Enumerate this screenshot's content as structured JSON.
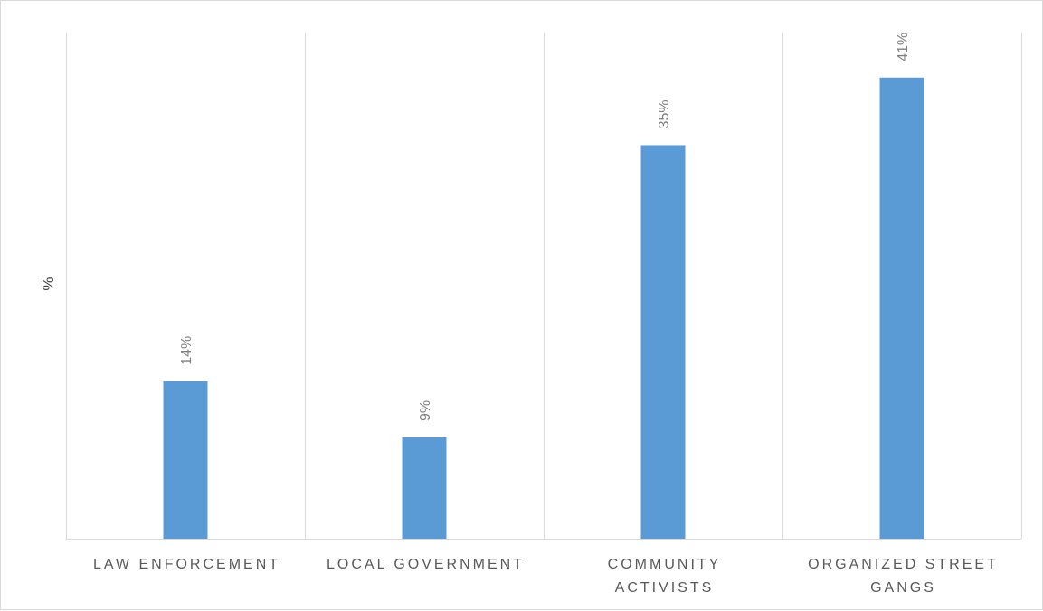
{
  "chart_data": {
    "type": "bar",
    "categories": [
      [
        "LAW ENFORCEMENT"
      ],
      [
        "LOCAL GOVERNMENT"
      ],
      [
        "COMMUNITY",
        "ACTIVISTS"
      ],
      [
        "ORGANIZED STREET",
        "GANGS"
      ]
    ],
    "values": [
      14,
      9,
      35,
      41
    ],
    "data_labels": [
      "14%",
      "9%",
      "35%",
      "41%"
    ],
    "ylabel": "%",
    "xlabel": "",
    "ylim": [
      0,
      45
    ],
    "grid": "vertical separators between categories",
    "legend": "none",
    "bar_color": "#5b9bd5"
  }
}
